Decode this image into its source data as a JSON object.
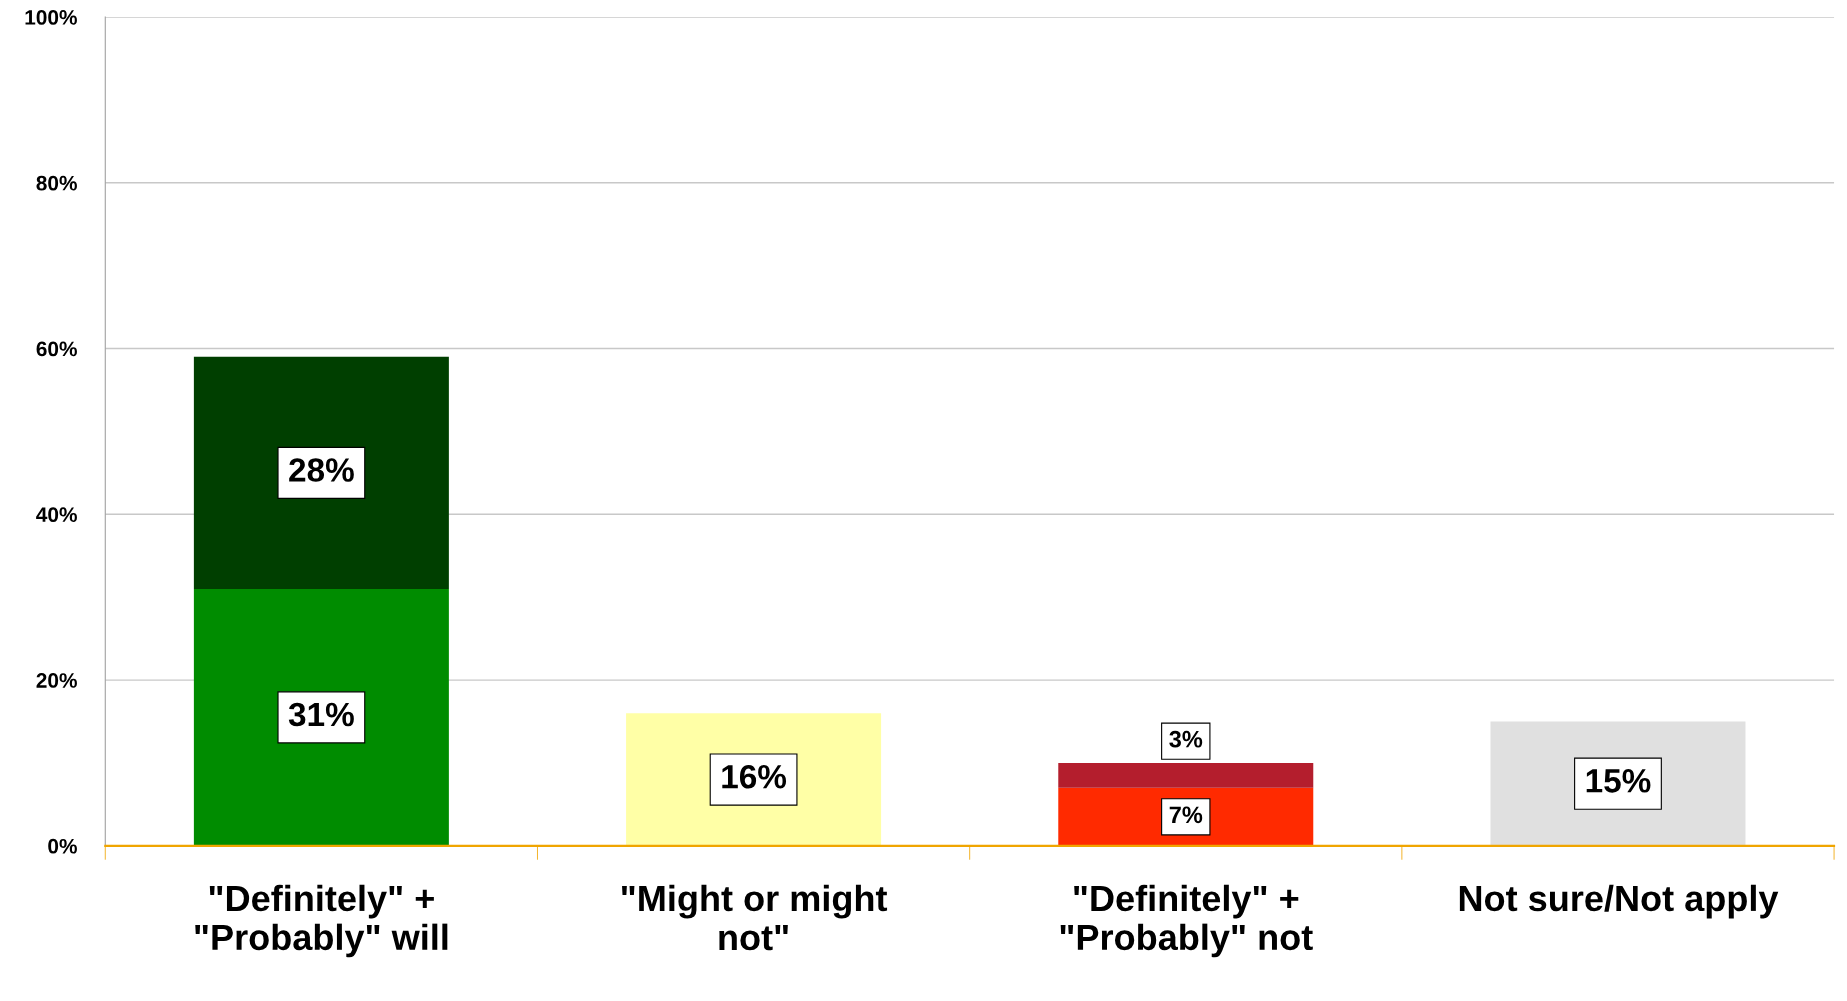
{
  "chart_data": {
    "type": "bar",
    "stacked": true,
    "categories": [
      "\"Definitely\" +\n\"Probably\" will",
      "\"Might or might\nnot\"",
      "\"Definitely\" +\n\"Probably\" not",
      "Not sure/Not apply"
    ],
    "series": [
      {
        "colors": [
          "#008c00",
          "#ffffa6",
          "#ff2a00",
          "#e0e0e0"
        ],
        "values": [
          31,
          16,
          7,
          15
        ],
        "value_labels": [
          "31%",
          "16%",
          "7%",
          "15%"
        ]
      },
      {
        "colors": [
          "#003f00",
          "#ffffa6",
          "#b41e2d",
          "#e0e0e0"
        ],
        "values": [
          28,
          null,
          3,
          null
        ],
        "value_labels": [
          "28%",
          null,
          "3%",
          null
        ]
      }
    ],
    "ylim": [
      0,
      100
    ],
    "yticks": [
      {
        "value": 0,
        "label": "0%"
      },
      {
        "value": 20,
        "label": "20%"
      },
      {
        "value": 40,
        "label": "40%"
      },
      {
        "value": 60,
        "label": "60%"
      },
      {
        "value": 80,
        "label": "80%"
      },
      {
        "value": 100,
        "label": "100%"
      }
    ],
    "grid": "y",
    "legend": false
  }
}
